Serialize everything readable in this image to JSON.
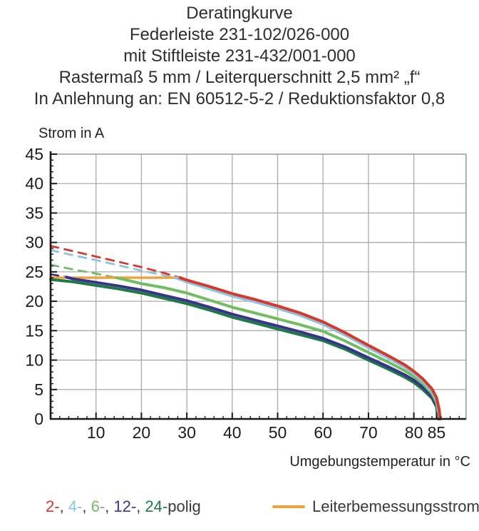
{
  "title_lines": [
    "Deratingkurve",
    "Federleiste 231-102/026-000",
    "mit Stiftleiste 231-432/001-000",
    "Rastermaß 5 mm / Leiterquerschnitt 2,5 mm² „f“",
    "In Anlehnung an: EN 60512-5-2 / Reduktionsfaktor 0,8"
  ],
  "y_axis": {
    "title": "Strom in A",
    "min": 0,
    "max": 45,
    "labels": [
      0,
      5,
      10,
      15,
      20,
      25,
      30,
      35,
      40,
      45
    ],
    "minor_step": 1,
    "major_step": 5,
    "grid_step": 5
  },
  "x_axis": {
    "title": "Umgebungstemperatur in °C",
    "min": 0,
    "max": 91.5,
    "labels": [
      10,
      20,
      30,
      40,
      50,
      60,
      70,
      80,
      85
    ],
    "minor_step": 2,
    "grid_ticks": [
      10,
      20,
      30,
      40,
      50,
      60,
      70,
      80
    ]
  },
  "colors": {
    "grid": "#ababab",
    "frame": "#9a9a9a",
    "axis": "#1a1a1a",
    "tick_label": "#1c1c1c",
    "accent_orange": "#f2a03a"
  },
  "legend": {
    "pole_items": [
      {
        "label": "2-",
        "color": "#d63829"
      },
      {
        "label": "4-",
        "color": "#8ac4e2"
      },
      {
        "label": "6-",
        "color": "#70bd62"
      },
      {
        "label": "12-",
        "color": "#38348c"
      },
      {
        "label": "24-",
        "color": "#1e7a44"
      }
    ],
    "separator": ", ",
    "suffix": "polig",
    "rated_label": "Leiterbemessungsstrom",
    "rated_color": "#f2a03a"
  },
  "chart_data": {
    "type": "line",
    "title": "Deratingkurve",
    "xlabel": "Umgebungstemperatur in °C",
    "ylabel": "Strom in A",
    "xlim": [
      0,
      91.5
    ],
    "ylim": [
      0,
      45
    ],
    "grid": true,
    "legend_position": "bottom",
    "rated_line": {
      "name": "Leiterbemessungsstrom",
      "color": "#f2a03a",
      "value_A": 24,
      "points": [
        [
          0,
          24
        ],
        [
          28.8,
          24
        ]
      ]
    },
    "series": [
      {
        "name": "24-polig",
        "color": "#1e7a44",
        "style": "solid",
        "dashed_points": [],
        "solid_points": [
          [
            0,
            23.7
          ],
          [
            5,
            23.3
          ],
          [
            10,
            22.7
          ],
          [
            15,
            22.1
          ],
          [
            20,
            21.4
          ],
          [
            25,
            20.5
          ],
          [
            30,
            19.6
          ],
          [
            35,
            18.5
          ],
          [
            40,
            17.3
          ],
          [
            45,
            16.3
          ],
          [
            50,
            15.3
          ],
          [
            55,
            14.3
          ],
          [
            60,
            13.3
          ],
          [
            65,
            11.8
          ],
          [
            70,
            10.0
          ],
          [
            74,
            8.6
          ],
          [
            78,
            7.1
          ],
          [
            80,
            6.2
          ],
          [
            82,
            5.0
          ],
          [
            84,
            3.5
          ],
          [
            85,
            2.0
          ],
          [
            85.2,
            0.6
          ],
          [
            85.4,
            0
          ]
        ]
      },
      {
        "name": "12-polig",
        "color": "#38348c",
        "style": "solid",
        "dashed_points": [
          [
            0,
            24.6
          ],
          [
            3.5,
            24.1
          ]
        ],
        "solid_points": [
          [
            3.5,
            24.1
          ],
          [
            5,
            23.8
          ],
          [
            10,
            23.2
          ],
          [
            15,
            22.6
          ],
          [
            20,
            21.9
          ],
          [
            25,
            21.0
          ],
          [
            30,
            20.1
          ],
          [
            35,
            19.0
          ],
          [
            40,
            17.8
          ],
          [
            45,
            16.8
          ],
          [
            50,
            15.8
          ],
          [
            55,
            14.8
          ],
          [
            60,
            13.7
          ],
          [
            65,
            12.2
          ],
          [
            70,
            10.4
          ],
          [
            74,
            9.0
          ],
          [
            78,
            7.5
          ],
          [
            80,
            6.6
          ],
          [
            82,
            5.4
          ],
          [
            84,
            3.8
          ],
          [
            85,
            2.3
          ],
          [
            85.3,
            0.8
          ],
          [
            85.5,
            0
          ]
        ]
      },
      {
        "name": "6-polig",
        "color": "#70bd62",
        "style": "solid",
        "dashed_points": [
          [
            0,
            26.2
          ],
          [
            5,
            25.4
          ],
          [
            10,
            24.7
          ],
          [
            14.5,
            24.0
          ]
        ],
        "solid_points": [
          [
            14.5,
            24.0
          ],
          [
            20,
            23.0
          ],
          [
            25,
            22.3
          ],
          [
            30,
            21.4
          ],
          [
            35,
            20.2
          ],
          [
            40,
            19.0
          ],
          [
            45,
            18.0
          ],
          [
            50,
            17.0
          ],
          [
            55,
            16.0
          ],
          [
            60,
            14.9
          ],
          [
            65,
            13.2
          ],
          [
            70,
            11.3
          ],
          [
            74,
            9.8
          ],
          [
            78,
            8.2
          ],
          [
            80,
            7.2
          ],
          [
            82,
            6.0
          ],
          [
            84,
            4.3
          ],
          [
            85,
            2.8
          ],
          [
            85.4,
            1.0
          ],
          [
            85.6,
            0
          ]
        ]
      },
      {
        "name": "4-polig",
        "color": "#8ac4e2",
        "style": "solid",
        "dashed_points": [
          [
            0,
            28.7
          ],
          [
            5,
            27.8
          ],
          [
            10,
            27.0
          ],
          [
            15,
            26.1
          ],
          [
            20,
            25.2
          ],
          [
            25,
            24.4
          ],
          [
            27.5,
            24.0
          ]
        ],
        "solid_points": [
          [
            27.5,
            24.0
          ],
          [
            30,
            23.3
          ],
          [
            35,
            22.1
          ],
          [
            40,
            20.9
          ],
          [
            45,
            19.9
          ],
          [
            50,
            18.8
          ],
          [
            55,
            17.6
          ],
          [
            60,
            16.1
          ],
          [
            65,
            14.2
          ],
          [
            70,
            12.1
          ],
          [
            74,
            10.5
          ],
          [
            78,
            8.8
          ],
          [
            80,
            7.7
          ],
          [
            82,
            6.4
          ],
          [
            84,
            4.7
          ],
          [
            85,
            3.2
          ],
          [
            85.5,
            1.2
          ],
          [
            85.7,
            0
          ]
        ]
      },
      {
        "name": "2-polig",
        "color": "#d63829",
        "style": "solid",
        "dashed_points": [
          [
            0,
            29.4
          ],
          [
            5,
            28.5
          ],
          [
            10,
            27.6
          ],
          [
            15,
            26.7
          ],
          [
            20,
            25.8
          ],
          [
            25,
            24.8
          ],
          [
            28.5,
            24.0
          ]
        ],
        "solid_points": [
          [
            28.5,
            24.0
          ],
          [
            30,
            23.6
          ],
          [
            35,
            22.5
          ],
          [
            40,
            21.3
          ],
          [
            45,
            20.3
          ],
          [
            50,
            19.2
          ],
          [
            55,
            18.0
          ],
          [
            60,
            16.5
          ],
          [
            65,
            14.6
          ],
          [
            70,
            12.5
          ],
          [
            74,
            10.9
          ],
          [
            78,
            9.2
          ],
          [
            80,
            8.1
          ],
          [
            82,
            6.8
          ],
          [
            84,
            5.1
          ],
          [
            85,
            3.6
          ],
          [
            85.6,
            1.5
          ],
          [
            85.8,
            0
          ]
        ]
      }
    ]
  }
}
